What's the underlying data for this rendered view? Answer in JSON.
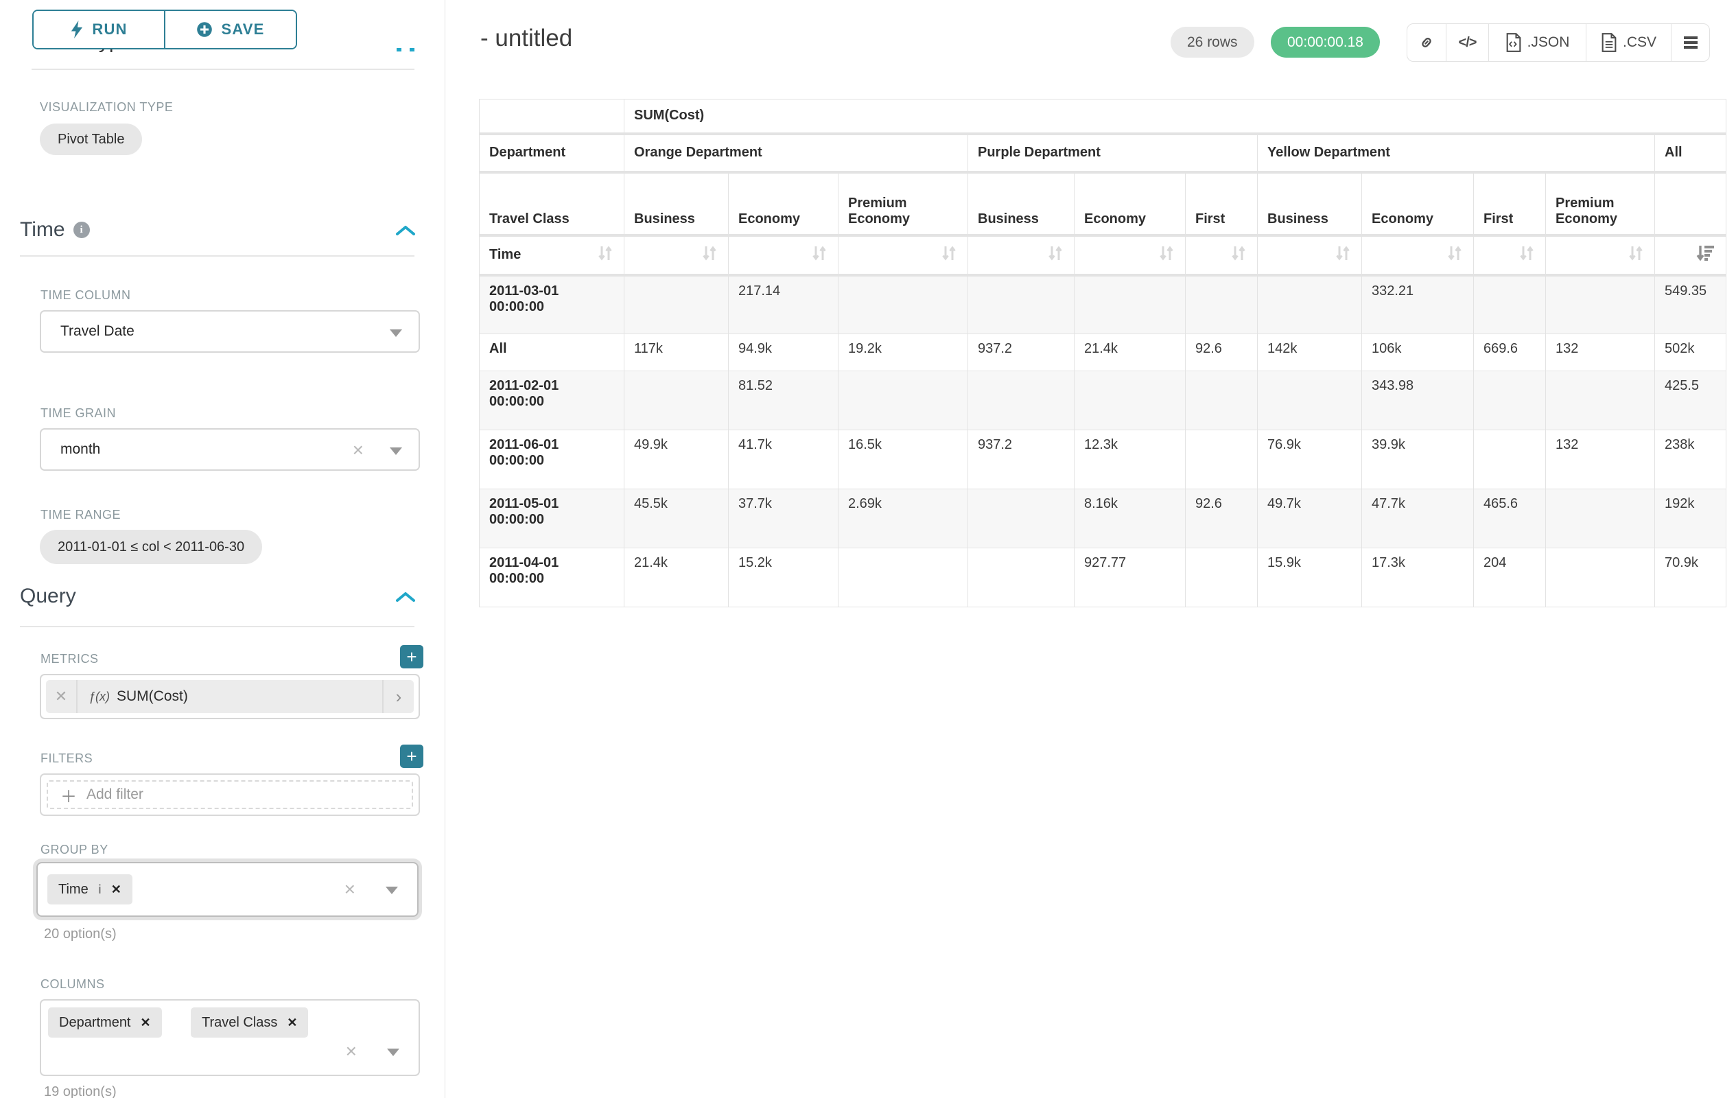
{
  "colors": {
    "accent_teal": "#2e7f95",
    "accent_blue": "#20a7c9",
    "success_green": "#5ac189",
    "pill_gray": "#e7e7e7",
    "border_gray": "#e3e3e3"
  },
  "sidebar": {
    "run_label": "RUN",
    "save_label": "SAVE",
    "chart_type_heading": "Chart Type",
    "visualization_type_label": "VISUALIZATION TYPE",
    "visualization_type_value": "Pivot Table",
    "time": {
      "heading": "Time",
      "time_column_label": "TIME COLUMN",
      "time_column_value": "Travel Date",
      "time_grain_label": "TIME GRAIN",
      "time_grain_value": "month",
      "time_range_label": "TIME RANGE",
      "time_range_value": "2011-01-01 ≤ col < 2011-06-30"
    },
    "query": {
      "heading": "Query",
      "metrics_label": "METRICS",
      "metric_fx": "ƒ(x)",
      "metric_value": "SUM(Cost)",
      "filters_label": "FILTERS",
      "add_filter_label": "Add filter",
      "group_by_label": "GROUP BY",
      "group_by_chip": "Time",
      "group_by_hint": "20 option(s)",
      "columns_label": "COLUMNS",
      "columns_chip_1": "Department",
      "columns_chip_2": "Travel Class",
      "columns_hint": "19 option(s)"
    }
  },
  "header": {
    "title": "- untitled",
    "row_count_badge": "26 rows",
    "timer_badge": "00:00:00.18",
    "json_label": ".JSON",
    "csv_label": ".CSV"
  },
  "pivot": {
    "metric_header": "SUM(Cost)",
    "department_label": "Department",
    "travel_class_label": "Travel Class",
    "time_label": "Time",
    "col_groups": [
      {
        "label": "Orange Department"
      },
      {
        "label": "Purple Department"
      },
      {
        "label": "Yellow Department"
      },
      {
        "label": "All"
      }
    ],
    "class_headers": [
      "Business",
      "Economy",
      "Premium Economy",
      "Business",
      "Economy",
      "First",
      "Business",
      "Economy",
      "First",
      "Premium Economy"
    ],
    "rows": [
      {
        "label": "2011-03-01 00:00:00",
        "values": [
          "",
          "217.14",
          "",
          "",
          "",
          "",
          "",
          "332.21",
          "",
          "",
          "549.35"
        ]
      },
      {
        "label": "All",
        "values": [
          "117k",
          "94.9k",
          "19.2k",
          "937.2",
          "21.4k",
          "92.6",
          "142k",
          "106k",
          "669.6",
          "132",
          "502k"
        ]
      },
      {
        "label": "2011-02-01 00:00:00",
        "values": [
          "",
          "81.52",
          "",
          "",
          "",
          "",
          "",
          "343.98",
          "",
          "",
          "425.5"
        ]
      },
      {
        "label": "2011-06-01 00:00:00",
        "values": [
          "49.9k",
          "41.7k",
          "16.5k",
          "937.2",
          "12.3k",
          "",
          "76.9k",
          "39.9k",
          "",
          "132",
          "238k"
        ]
      },
      {
        "label": "2011-05-01 00:00:00",
        "values": [
          "45.5k",
          "37.7k",
          "2.69k",
          "",
          "8.16k",
          "92.6",
          "49.7k",
          "47.7k",
          "465.6",
          "",
          "192k"
        ]
      },
      {
        "label": "2011-04-01 00:00:00",
        "values": [
          "21.4k",
          "15.2k",
          "",
          "",
          "927.77",
          "",
          "15.9k",
          "17.3k",
          "204",
          "",
          "70.9k"
        ]
      }
    ]
  }
}
